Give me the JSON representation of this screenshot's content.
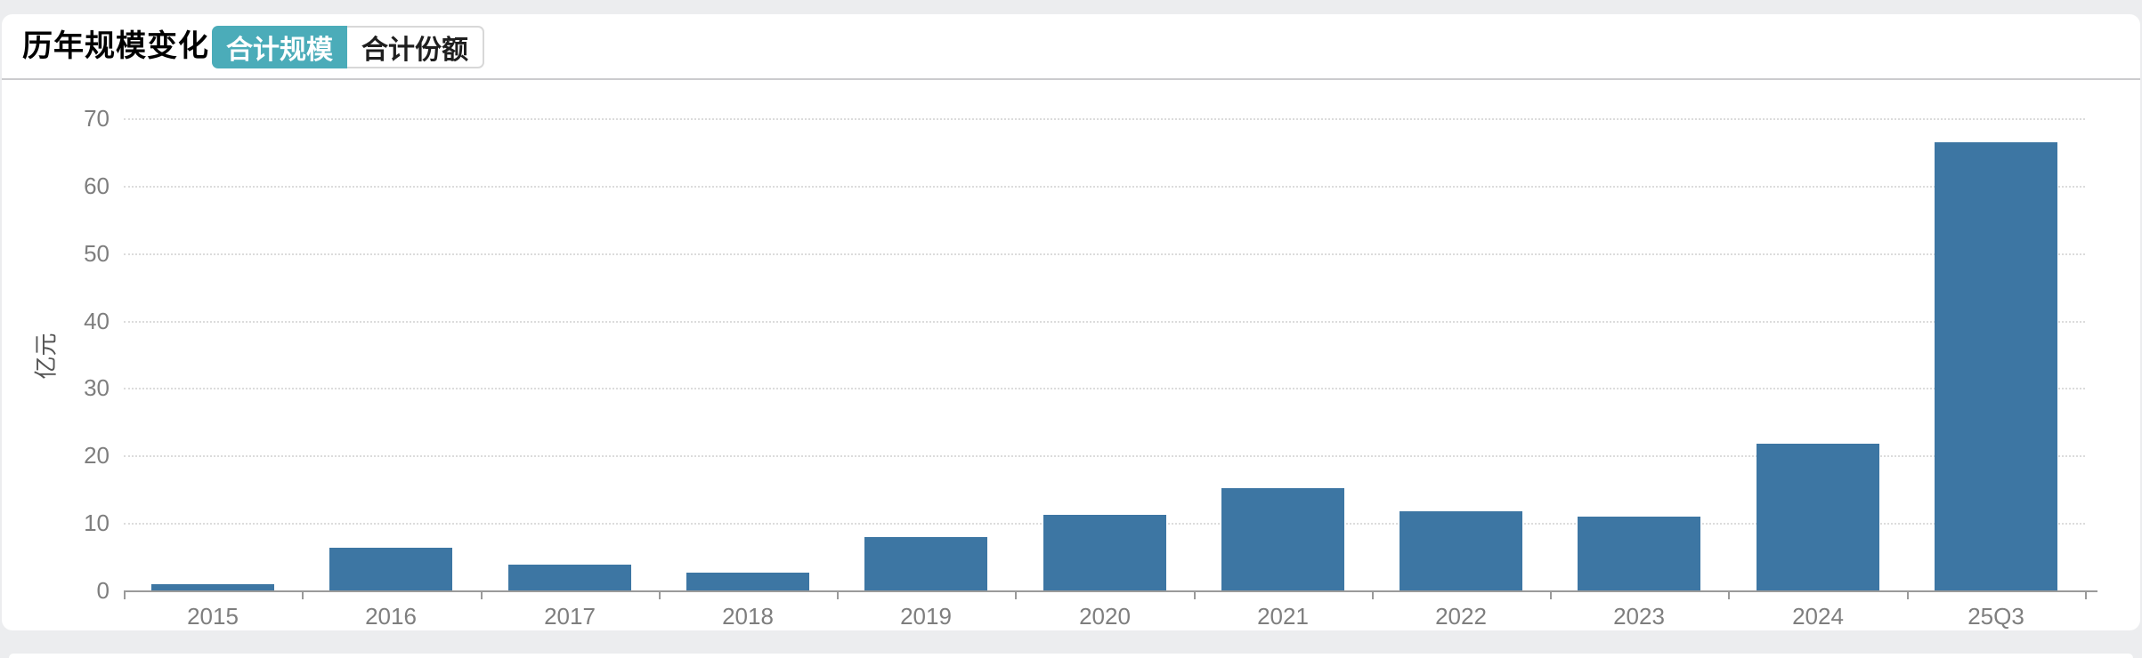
{
  "header": {
    "title": "历年规模变化",
    "tabs": [
      {
        "label": "合计规模",
        "active": true
      },
      {
        "label": "合计份额",
        "active": false
      }
    ]
  },
  "chart_data": {
    "type": "bar",
    "title": "历年规模变化",
    "categories": [
      "2015",
      "2016",
      "2017",
      "2018",
      "2019",
      "2020",
      "2021",
      "2022",
      "2023",
      "2024",
      "25Q3"
    ],
    "values": [
      0.9,
      6.3,
      3.8,
      2.6,
      7.9,
      11.2,
      15.1,
      11.7,
      11.0,
      21.8,
      66.4
    ],
    "xlabel": "",
    "ylabel": "亿元",
    "ylim": [
      0,
      70
    ],
    "ytick_interval": 10,
    "grid": "horizontal-dotted",
    "legend": "none",
    "bar_color": "#3D76A3"
  },
  "colors": {
    "accent_teal": "#4BACB9",
    "bar_blue": "#3D76A3",
    "page_background": "#ECEDEF",
    "divider": "#CBCBCE",
    "axis_line": "#9A9A9A",
    "gridline": "#DCDCDC",
    "tick_text": "#7E7E7E"
  }
}
